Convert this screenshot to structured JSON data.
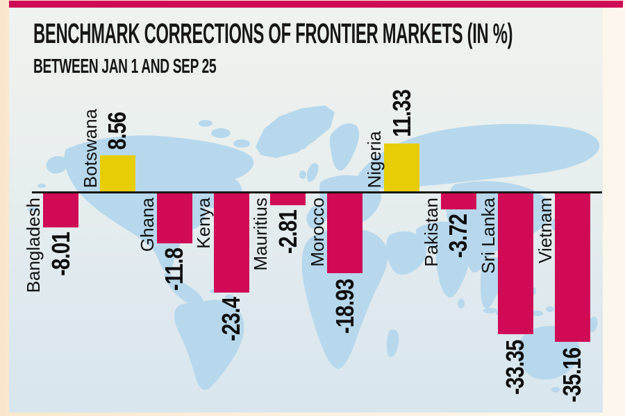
{
  "header": {
    "title": "BENCHMARK CORRECTIONS OF FRONTIER MARKETS (IN %)",
    "subtitle": "BETWEEN JAN 1 AND SEP 25"
  },
  "colors": {
    "accent_banner": "#ce0b55",
    "negative_bar": "#d00a55",
    "positive_bar": "#e7cd05",
    "axis_line": "#151515",
    "map_land": "#b7d8ec",
    "frame_cream": "#fae7cb"
  },
  "chart_data": {
    "type": "bar",
    "orientation": "vertical",
    "unit": "%",
    "title": "BENCHMARK CORRECTIONS OF FRONTIER MARKETS (IN %)",
    "subtitle": "BETWEEN JAN 1 AND SEP 25",
    "baseline": 0,
    "ylim": [
      -36,
      12
    ],
    "grid": false,
    "legend": false,
    "background": "world-map",
    "categories": [
      "Bangladesh",
      "Botswana",
      "Ghana",
      "Kenya",
      "Mauritius",
      "Morocco",
      "Nigeria",
      "Pakistan",
      "Sri Lanka",
      "Vietnam"
    ],
    "values": [
      -8.01,
      8.56,
      -11.8,
      -23.4,
      -2.81,
      -18.93,
      11.33,
      -3.72,
      -33.35,
      -35.16
    ],
    "value_labels": [
      "-8.01",
      "8.56",
      "-11.8",
      "-23.4",
      "-2.81",
      "-18.93",
      "11.33",
      "-3.72",
      "-33.35",
      "-35.16"
    ]
  }
}
